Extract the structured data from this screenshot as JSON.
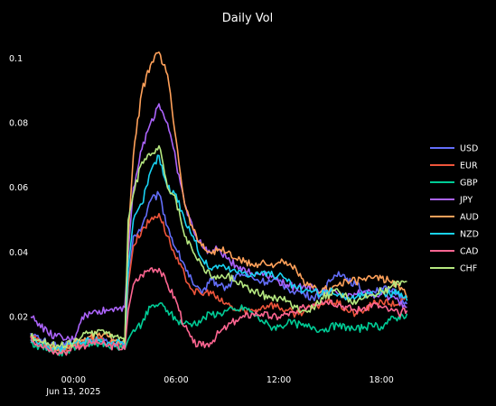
{
  "chart_data": {
    "type": "line",
    "title": "Daily Vol",
    "xlabel": "",
    "ylabel": "",
    "x_range_hours": [
      -2.5,
      20
    ],
    "ylim": [
      0.005,
      0.107
    ],
    "grid": false,
    "legend_position": "right",
    "x_ticks": [
      {
        "hour": 0,
        "label": "00:00",
        "sublabel": "Jun 13, 2025"
      },
      {
        "hour": 6,
        "label": "06:00",
        "sublabel": ""
      },
      {
        "hour": 12,
        "label": "12:00",
        "sublabel": ""
      },
      {
        "hour": 18,
        "label": "18:00",
        "sublabel": ""
      }
    ],
    "y_ticks": [
      {
        "value": 0.02,
        "label": "0.02"
      },
      {
        "value": 0.04,
        "label": "0.04"
      },
      {
        "value": 0.06,
        "label": "0.06"
      },
      {
        "value": 0.08,
        "label": "0.08"
      },
      {
        "value": 0.1,
        "label": "0.1"
      }
    ],
    "series": [
      {
        "name": "USD",
        "color": "#636efa",
        "x": [
          -2.5,
          -2,
          -1.5,
          -1,
          -0.5,
          0,
          0.5,
          1,
          1.5,
          2,
          2.5,
          3,
          3.2,
          3.5,
          4,
          4.5,
          5,
          5.5,
          6,
          6.5,
          7,
          7.5,
          8,
          8.5,
          9,
          9.5,
          10,
          10.5,
          11,
          11.5,
          12,
          12.5,
          13,
          13.5,
          14,
          14.5,
          15,
          15.5,
          16,
          16.5,
          17,
          17.5,
          18,
          18.5,
          19,
          19.5
        ],
        "y": [
          0.015,
          0.013,
          0.012,
          0.011,
          0.011,
          0.012,
          0.012,
          0.013,
          0.013,
          0.012,
          0.012,
          0.011,
          0.03,
          0.045,
          0.048,
          0.056,
          0.058,
          0.048,
          0.041,
          0.036,
          0.03,
          0.027,
          0.032,
          0.03,
          0.029,
          0.033,
          0.033,
          0.032,
          0.031,
          0.031,
          0.031,
          0.029,
          0.028,
          0.027,
          0.026,
          0.027,
          0.031,
          0.034,
          0.032,
          0.03,
          0.028,
          0.028,
          0.029,
          0.028,
          0.027,
          0.024
        ]
      },
      {
        "name": "EUR",
        "color": "#ef553b",
        "x": [
          -2.5,
          -2,
          -1.5,
          -1,
          -0.5,
          0,
          0.5,
          1,
          1.5,
          2,
          2.5,
          3,
          3.2,
          3.5,
          4,
          4.5,
          5,
          5.5,
          6,
          6.5,
          7,
          7.5,
          8,
          8.5,
          9,
          9.5,
          10,
          10.5,
          11,
          11.5,
          12,
          12.5,
          13,
          13.5,
          14,
          14.5,
          15,
          15.5,
          16,
          16.5,
          17,
          17.5,
          18,
          18.5,
          19,
          19.5
        ],
        "y": [
          0.014,
          0.012,
          0.011,
          0.01,
          0.01,
          0.012,
          0.012,
          0.013,
          0.013,
          0.012,
          0.012,
          0.011,
          0.03,
          0.042,
          0.047,
          0.05,
          0.052,
          0.045,
          0.038,
          0.033,
          0.028,
          0.027,
          0.028,
          0.025,
          0.024,
          0.022,
          0.022,
          0.022,
          0.023,
          0.024,
          0.023,
          0.022,
          0.021,
          0.022,
          0.023,
          0.024,
          0.025,
          0.024,
          0.022,
          0.021,
          0.022,
          0.024,
          0.025,
          0.024,
          0.024,
          0.026
        ]
      },
      {
        "name": "GBP",
        "color": "#00cc96",
        "x": [
          -2.5,
          -2,
          -1.5,
          -1,
          -0.5,
          0,
          0.5,
          1,
          1.5,
          2,
          2.5,
          3,
          3.2,
          3.5,
          4,
          4.5,
          5,
          5.5,
          6,
          6.5,
          7,
          7.5,
          8,
          8.5,
          9,
          9.5,
          10,
          10.5,
          11,
          11.5,
          12,
          12.5,
          13,
          13.5,
          14,
          14.5,
          15,
          15.5,
          16,
          16.5,
          17,
          17.5,
          18,
          18.5,
          19,
          19.5
        ],
        "y": [
          0.012,
          0.011,
          0.01,
          0.009,
          0.009,
          0.011,
          0.011,
          0.012,
          0.012,
          0.011,
          0.011,
          0.01,
          0.013,
          0.016,
          0.018,
          0.023,
          0.024,
          0.022,
          0.019,
          0.018,
          0.018,
          0.019,
          0.021,
          0.021,
          0.022,
          0.022,
          0.023,
          0.021,
          0.019,
          0.017,
          0.017,
          0.018,
          0.018,
          0.017,
          0.017,
          0.016,
          0.017,
          0.017,
          0.017,
          0.016,
          0.017,
          0.017,
          0.017,
          0.019,
          0.02,
          0.021
        ]
      },
      {
        "name": "JPY",
        "color": "#ab63fa",
        "x": [
          -2.5,
          -2,
          -1.5,
          -1,
          -0.5,
          0,
          0.5,
          1,
          1.5,
          2,
          2.5,
          3,
          3.2,
          3.5,
          4,
          4.5,
          5,
          5.5,
          6,
          6.5,
          7,
          7.5,
          8,
          8.5,
          9,
          9.5,
          10,
          10.5,
          11,
          11.5,
          12,
          12.5,
          13,
          13.5,
          14,
          14.5,
          15,
          15.5,
          16,
          16.5,
          17,
          17.5,
          18,
          18.5,
          19,
          19.5
        ],
        "y": [
          0.02,
          0.018,
          0.015,
          0.014,
          0.013,
          0.013,
          0.02,
          0.021,
          0.022,
          0.022,
          0.023,
          0.023,
          0.04,
          0.06,
          0.072,
          0.08,
          0.086,
          0.08,
          0.068,
          0.055,
          0.047,
          0.042,
          0.04,
          0.041,
          0.038,
          0.036,
          0.035,
          0.033,
          0.034,
          0.033,
          0.031,
          0.03,
          0.029,
          0.03,
          0.029,
          0.028,
          0.028,
          0.027,
          0.026,
          0.027,
          0.028,
          0.027,
          0.027,
          0.026,
          0.025,
          0.023
        ]
      },
      {
        "name": "AUD",
        "color": "#ffa15a",
        "x": [
          -2.5,
          -2,
          -1.5,
          -1,
          -0.5,
          0,
          0.5,
          1,
          1.5,
          2,
          2.5,
          3,
          3.2,
          3.5,
          4,
          4.5,
          5,
          5.5,
          6,
          6.5,
          7,
          7.5,
          8,
          8.5,
          9,
          9.5,
          10,
          10.5,
          11,
          11.5,
          12,
          12.5,
          13,
          13.5,
          14,
          14.5,
          15,
          15.5,
          16,
          16.5,
          17,
          17.5,
          18,
          18.5,
          19,
          19.5
        ],
        "y": [
          0.014,
          0.012,
          0.011,
          0.01,
          0.01,
          0.012,
          0.013,
          0.014,
          0.015,
          0.014,
          0.013,
          0.012,
          0.045,
          0.07,
          0.09,
          0.098,
          0.102,
          0.095,
          0.075,
          0.055,
          0.047,
          0.042,
          0.04,
          0.041,
          0.04,
          0.038,
          0.037,
          0.036,
          0.037,
          0.036,
          0.037,
          0.036,
          0.035,
          0.03,
          0.029,
          0.028,
          0.029,
          0.03,
          0.031,
          0.031,
          0.032,
          0.032,
          0.032,
          0.031,
          0.03,
          0.026
        ]
      },
      {
        "name": "NZD",
        "color": "#19d3f3",
        "x": [
          -2.5,
          -2,
          -1.5,
          -1,
          -0.5,
          0,
          0.5,
          1,
          1.5,
          2,
          2.5,
          3,
          3.2,
          3.5,
          4,
          4.5,
          5,
          5.5,
          6,
          6.5,
          7,
          7.5,
          8,
          8.5,
          9,
          9.5,
          10,
          10.5,
          11,
          11.5,
          12,
          12.5,
          13,
          13.5,
          14,
          14.5,
          15,
          15.5,
          16,
          16.5,
          17,
          17.5,
          18,
          18.5,
          19,
          19.5
        ],
        "y": [
          0.013,
          0.012,
          0.011,
          0.01,
          0.01,
          0.012,
          0.012,
          0.013,
          0.013,
          0.012,
          0.012,
          0.011,
          0.035,
          0.05,
          0.055,
          0.065,
          0.07,
          0.06,
          0.058,
          0.05,
          0.045,
          0.038,
          0.035,
          0.036,
          0.035,
          0.034,
          0.034,
          0.033,
          0.034,
          0.033,
          0.033,
          0.031,
          0.029,
          0.028,
          0.028,
          0.027,
          0.028,
          0.027,
          0.026,
          0.026,
          0.027,
          0.027,
          0.028,
          0.027,
          0.028,
          0.025
        ]
      },
      {
        "name": "CAD",
        "color": "#ff6692",
        "x": [
          -2.5,
          -2,
          -1.5,
          -1,
          -0.5,
          0,
          0.5,
          1,
          1.5,
          2,
          2.5,
          3,
          3.2,
          3.5,
          4,
          4.5,
          5,
          5.5,
          6,
          6.5,
          7,
          7.5,
          8,
          8.5,
          9,
          9.5,
          10,
          10.5,
          11,
          11.5,
          12,
          12.5,
          13,
          13.5,
          14,
          14.5,
          15,
          15.5,
          16,
          16.5,
          17,
          17.5,
          18,
          18.5,
          19,
          19.5
        ],
        "y": [
          0.014,
          0.011,
          0.01,
          0.009,
          0.009,
          0.011,
          0.011,
          0.012,
          0.012,
          0.011,
          0.011,
          0.01,
          0.022,
          0.03,
          0.033,
          0.035,
          0.035,
          0.03,
          0.025,
          0.017,
          0.012,
          0.011,
          0.012,
          0.015,
          0.017,
          0.019,
          0.02,
          0.021,
          0.021,
          0.02,
          0.02,
          0.021,
          0.021,
          0.023,
          0.024,
          0.025,
          0.025,
          0.024,
          0.023,
          0.022,
          0.023,
          0.024,
          0.023,
          0.022,
          0.021,
          0.022
        ]
      },
      {
        "name": "CHF",
        "color": "#b6e880",
        "x": [
          -2.5,
          -2,
          -1.5,
          -1,
          -0.5,
          0,
          0.5,
          1,
          1.5,
          2,
          2.5,
          3,
          3.2,
          3.5,
          4,
          4.5,
          5,
          5.5,
          6,
          6.5,
          7,
          7.5,
          8,
          8.5,
          9,
          9.5,
          10,
          10.5,
          11,
          11.5,
          12,
          12.5,
          13,
          13.5,
          14,
          14.5,
          15,
          15.5,
          16,
          16.5,
          17,
          17.5,
          18,
          18.5,
          19,
          19.5
        ],
        "y": [
          0.014,
          0.013,
          0.012,
          0.011,
          0.011,
          0.012,
          0.014,
          0.015,
          0.016,
          0.015,
          0.014,
          0.012,
          0.05,
          0.058,
          0.068,
          0.07,
          0.073,
          0.06,
          0.056,
          0.045,
          0.04,
          0.036,
          0.033,
          0.032,
          0.033,
          0.031,
          0.03,
          0.028,
          0.027,
          0.026,
          0.026,
          0.025,
          0.023,
          0.022,
          0.023,
          0.026,
          0.027,
          0.028,
          0.026,
          0.024,
          0.026,
          0.027,
          0.028,
          0.029,
          0.031,
          0.031
        ]
      }
    ]
  }
}
